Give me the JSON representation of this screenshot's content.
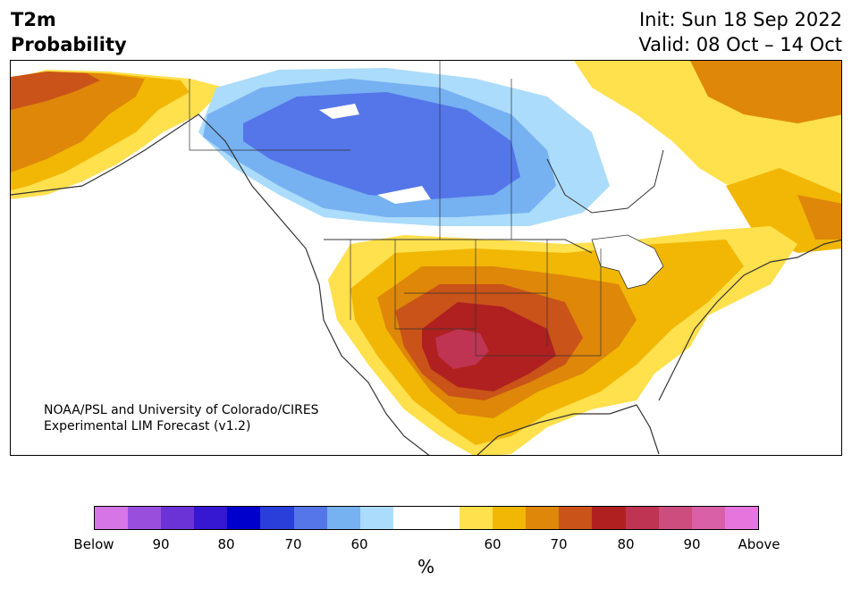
{
  "header": {
    "title_line1": "T2m",
    "title_line2": "Probability",
    "init": "Init: Sun 18 Sep 2022",
    "valid": "Valid: 08 Oct – 14 Oct"
  },
  "credit": {
    "line1": "NOAA/PSL and University of Colorado/CIRES",
    "line2": "Experimental LIM Forecast (v1.2)"
  },
  "colorbar": {
    "colors": [
      "#d675e6",
      "#9a4fdc",
      "#6b33d6",
      "#3617d2",
      "#0000cc",
      "#2a3ed9",
      "#5476e8",
      "#76b1f2",
      "#acdcfb",
      "#ffffff",
      "#ffffff",
      "#ffe04d",
      "#f2b705",
      "#de8709",
      "#c95318",
      "#b02020",
      "#bf3452",
      "#cc4d7e",
      "#d95fa6",
      "#e676dd"
    ],
    "ticks": [
      "Below",
      "90",
      "80",
      "70",
      "60",
      "60",
      "70",
      "80",
      "90",
      "Above"
    ],
    "unit": "%"
  },
  "map_colors": {
    "ocean": "#ffffff",
    "border": "#333333",
    "lake": "#ffffff"
  }
}
